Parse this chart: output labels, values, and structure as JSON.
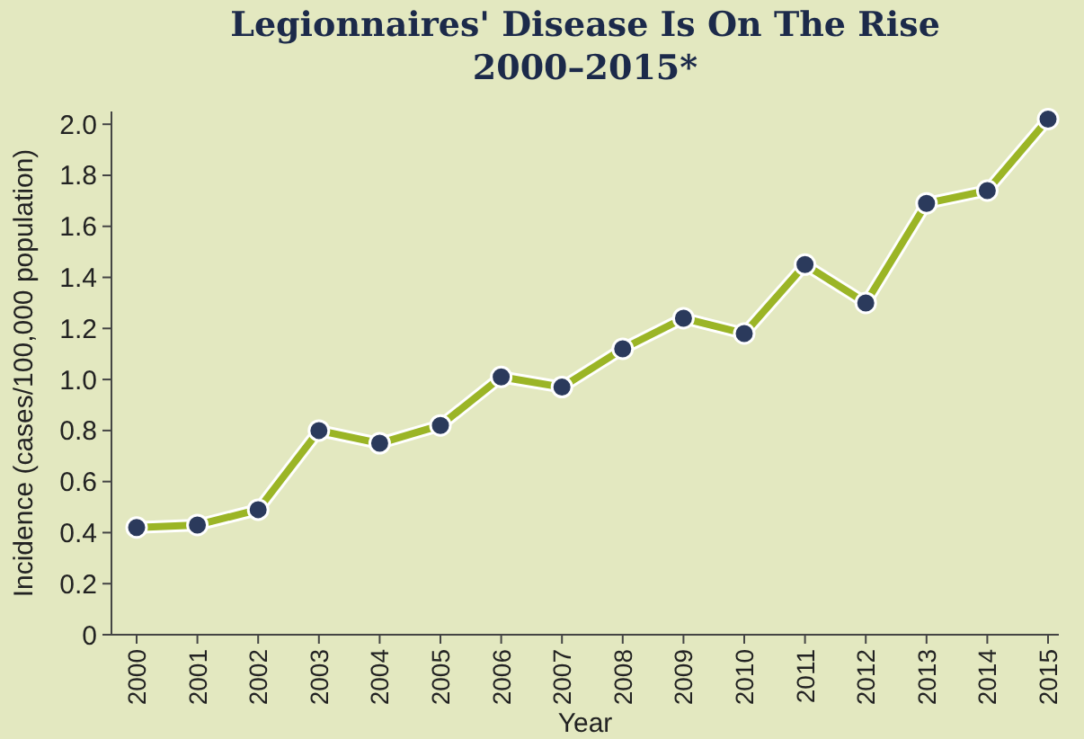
{
  "chart_data": {
    "type": "line",
    "title": "Legionnaires' Disease Is On The Rise\n2000–2015*",
    "xlabel": "Year",
    "ylabel": "Incidence (cases/100,000 population)",
    "categories": [
      "2000",
      "2001",
      "2002",
      "2003",
      "2004",
      "2005",
      "2006",
      "2007",
      "2008",
      "2009",
      "2010",
      "2011",
      "2012",
      "2013",
      "2014",
      "2015"
    ],
    "series": [
      {
        "color": "#9bb526",
        "values": [
          0.42,
          0.43,
          0.49,
          0.8,
          0.75,
          0.82,
          1.01,
          0.97,
          1.12,
          1.24,
          1.18,
          1.45,
          1.3,
          1.69,
          1.74,
          2.02
        ]
      }
    ],
    "ylim": [
      0,
      2.05
    ],
    "yticks": [
      {
        "value": 0,
        "label": "0"
      },
      0.2,
      0.4,
      0.6,
      0.8,
      {
        "value": 1,
        "label": "1.0"
      },
      1.2,
      1.4,
      1.6,
      1.8,
      {
        "value": 2,
        "label": "2.0"
      }
    ],
    "marker": "circle",
    "line_style": "solid",
    "grid": false
  }
}
